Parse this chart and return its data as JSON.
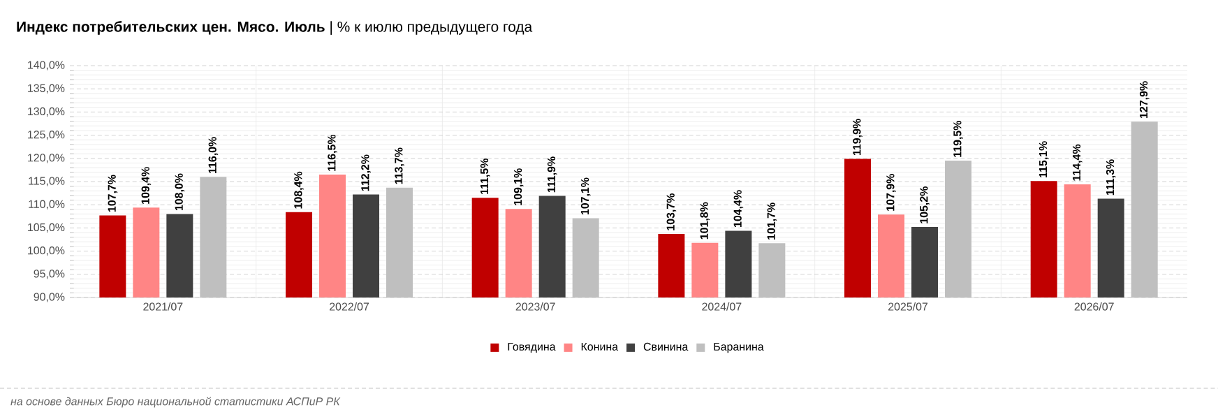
{
  "chart_data": {
    "type": "bar",
    "title": "**Индекс потребительских цен. Мясо. Июль** | % к июлю предыдущего года",
    "categories": [
      "2021/07",
      "2022/07",
      "2023/07",
      "2024/07",
      "2025/07",
      "2026/07"
    ],
    "series": [
      {
        "name": "Говядина",
        "color": "#c00000",
        "values": [
          107.7,
          108.4,
          111.5,
          103.7,
          119.9,
          115.1
        ],
        "value_labels": [
          "107,7%",
          "108,4%",
          "111,5%",
          "103,7%",
          "119,9%",
          "115,1%"
        ]
      },
      {
        "name": "Конина",
        "color": "#ff8585",
        "values": [
          109.4,
          116.5,
          109.1,
          101.8,
          107.9,
          114.4
        ],
        "value_labels": [
          "109,4%",
          "116,5%",
          "109,1%",
          "101,8%",
          "107,9%",
          "114,4%"
        ]
      },
      {
        "name": "Свинина",
        "color": "#404040",
        "values": [
          108.0,
          112.2,
          111.9,
          104.4,
          105.2,
          111.3
        ],
        "value_labels": [
          "108,0%",
          "112,2%",
          "111,9%",
          "104,4%",
          "105,2%",
          "111,3%"
        ]
      },
      {
        "name": "Баранина",
        "color": "#bfbfbf",
        "values": [
          116.0,
          113.7,
          107.1,
          101.7,
          119.5,
          127.9
        ],
        "value_labels": [
          "116,0%",
          "113,7%",
          "107,1%",
          "101,7%",
          "119,5%",
          "127,9%"
        ]
      }
    ],
    "ylim": [
      90,
      140
    ],
    "yticks": [
      {
        "value": 90,
        "label": "90,0%"
      },
      {
        "value": 95,
        "label": "95,0%"
      },
      {
        "value": 100,
        "label": "100,0%"
      },
      {
        "value": 105,
        "label": "105,0%"
      },
      {
        "value": 110,
        "label": "110,0%"
      },
      {
        "value": 115,
        "label": "115,0%"
      },
      {
        "value": 120,
        "label": "120,0%"
      },
      {
        "value": 125,
        "label": "125,0%"
      },
      {
        "value": 130,
        "label": "130,0%"
      },
      {
        "value": 135,
        "label": "135,0%"
      },
      {
        "value": 140,
        "label": "140,0%"
      }
    ],
    "grid": "y",
    "legend": "bottom",
    "annotations": [
      "*на основе данных Бюро национальной статистики АСПиР РК*"
    ]
  }
}
